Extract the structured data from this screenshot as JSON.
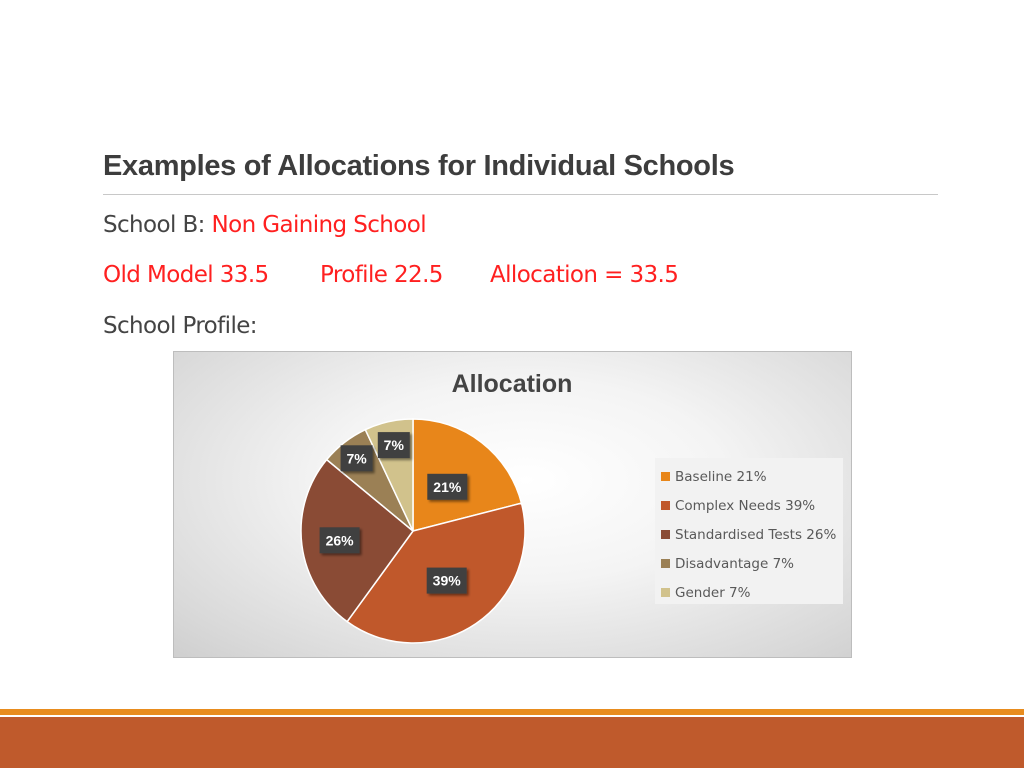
{
  "slide": {
    "title": "Examples of Allocations for Individual Schools",
    "school_label": "School B: ",
    "school_value": "Non Gaining School",
    "old_model": "Old Model 33.5",
    "profile": "Profile 22.5",
    "allocation": "Allocation = 33.5",
    "profile_label": "School Profile:"
  },
  "colors": {
    "title_text": "#3d3d3d",
    "highlight_red": "#ff2020",
    "footer_orange": "#e88c1e",
    "footer_rust": "#bf5a2c"
  },
  "chart_data": {
    "type": "pie",
    "title": "Allocation",
    "legend_position": "right",
    "slices": [
      {
        "name": "Baseline",
        "value": 21,
        "label": "21%",
        "legend": "Baseline 21%",
        "color": "#e8861a"
      },
      {
        "name": "Complex Needs",
        "value": 39,
        "label": "39%",
        "legend": "Complex Needs 39%",
        "color": "#c0582b"
      },
      {
        "name": "Standardised Tests",
        "value": 26,
        "label": "26%",
        "legend": "Standardised Tests 26%",
        "color": "#8a4b35"
      },
      {
        "name": "Disadvantage",
        "value": 7,
        "label": "7%",
        "legend": "Disadvantage 7%",
        "color": "#9b8055"
      },
      {
        "name": "Gender",
        "value": 7,
        "label": "7%",
        "legend": "Gender 7%",
        "color": "#d1c28c"
      }
    ]
  }
}
